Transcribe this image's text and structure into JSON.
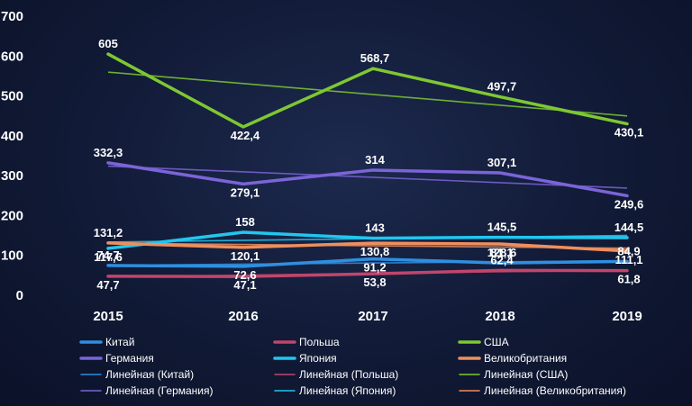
{
  "chart_data": {
    "type": "line",
    "categories": [
      "2015",
      "2016",
      "2017",
      "2018",
      "2019"
    ],
    "ylim": [
      0,
      700
    ],
    "yticks": [
      0,
      100,
      200,
      300,
      400,
      500,
      600,
      700
    ],
    "ytick_labels": [
      "0",
      "100",
      "200",
      "300",
      "400",
      "500",
      "600",
      "700"
    ],
    "grid": false,
    "legend_position": "bottom",
    "series": [
      {
        "name": "Китай",
        "color": "#2f8fe0",
        "values": [
          74.7,
          72.6,
          91.2,
          81.1,
          84.9
        ],
        "labels": [
          "74,7",
          "72,6",
          "91,2",
          "81,1",
          "84,9"
        ]
      },
      {
        "name": "Германия",
        "color": "#7b64d8",
        "values": [
          332.3,
          279.1,
          314,
          307.1,
          249.6
        ],
        "labels": [
          "332,3",
          "279,1",
          "314",
          "307,1",
          "249,6"
        ]
      },
      {
        "name": "Польша",
        "color": "#c2456c",
        "values": [
          47.7,
          47.1,
          53.8,
          62.4,
          61.8
        ],
        "labels": [
          "47,7",
          "47,1",
          "53,8",
          "62,4",
          "61,8"
        ]
      },
      {
        "name": "Япония",
        "color": "#22c6ee",
        "values": [
          117.6,
          158,
          143,
          145.5,
          144.5
        ],
        "labels": [
          "117,6",
          "158",
          "143",
          "145,5",
          "144,5"
        ]
      },
      {
        "name": "США",
        "color": "#7ec832",
        "values": [
          605,
          422.4,
          568.7,
          497.7,
          430.1
        ],
        "labels": [
          "605",
          "422,4",
          "568,7",
          "497,7",
          "430,1"
        ]
      },
      {
        "name": "Великобритания",
        "color": "#ee8f5c",
        "values": [
          131.2,
          120.1,
          130.8,
          128.6,
          111.1
        ],
        "labels": [
          "131,2",
          "120,1",
          "130,8",
          "128,6",
          "111,1"
        ]
      }
    ],
    "trendlines": [
      {
        "name": "Линейная (Китай)",
        "series": "Китай",
        "color": "#2f8fe0"
      },
      {
        "name": "Линейная (Германия)",
        "series": "Германия",
        "color": "#7b64d8"
      },
      {
        "name": "Линейная (Польша)",
        "series": "Польша",
        "color": "#c2456c"
      },
      {
        "name": "Линейная (Япония)",
        "series": "Япония",
        "color": "#22c6ee"
      },
      {
        "name": "Линейная (США)",
        "series": "США",
        "color": "#7ec832"
      },
      {
        "name": "Линейная (Великобритания)",
        "series": "Великобритания",
        "color": "#ee8f5c"
      }
    ]
  }
}
